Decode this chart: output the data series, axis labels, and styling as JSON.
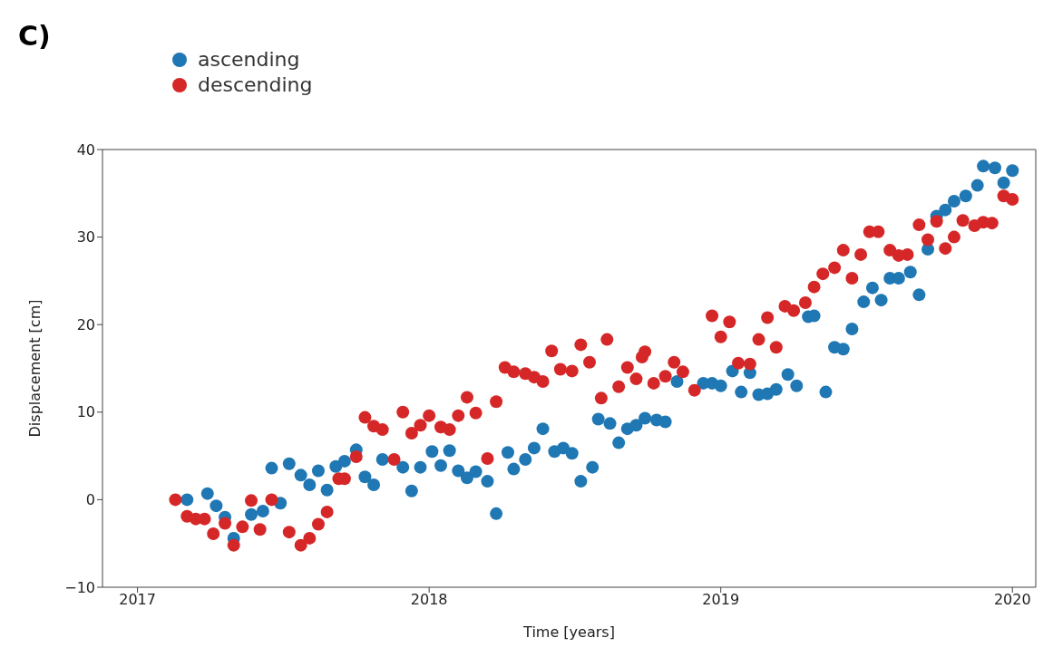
{
  "chart_data": {
    "type": "scatter",
    "title": "C)",
    "xlabel": "Time [years]",
    "ylabel": "Displacement [cm]",
    "xlim": [
      2016.88,
      2020.08
    ],
    "ylim": [
      -10,
      40
    ],
    "xticks": [
      2017,
      2018,
      2019,
      2020
    ],
    "yticks": [
      {
        "value": -10,
        "label": "−10"
      },
      0,
      10,
      20,
      30,
      40
    ],
    "grid": false,
    "legend": "top left",
    "marker": "circle",
    "series": [
      {
        "name": "ascending",
        "color": "#1f77b4",
        "x": [
          2017.17,
          2017.24,
          2017.27,
          2017.3,
          2017.33,
          2017.39,
          2017.43,
          2017.46,
          2017.49,
          2017.52,
          2017.56,
          2017.59,
          2017.62,
          2017.65,
          2017.68,
          2017.71,
          2017.75,
          2017.78,
          2017.81,
          2017.84,
          2017.91,
          2017.94,
          2017.97,
          2018.01,
          2018.04,
          2018.07,
          2018.1,
          2018.13,
          2018.16,
          2018.2,
          2018.23,
          2018.27,
          2018.29,
          2018.33,
          2018.36,
          2018.39,
          2018.43,
          2018.46,
          2018.49,
          2018.52,
          2018.56,
          2018.58,
          2018.62,
          2018.65,
          2018.68,
          2018.71,
          2018.74,
          2018.78,
          2018.81,
          2018.85,
          2018.94,
          2018.97,
          2019.0,
          2019.04,
          2019.07,
          2019.1,
          2019.13,
          2019.16,
          2019.19,
          2019.23,
          2019.26,
          2019.3,
          2019.32,
          2019.36,
          2019.39,
          2019.42,
          2019.45,
          2019.49,
          2019.52,
          2019.55,
          2019.58,
          2019.61,
          2019.65,
          2019.68,
          2019.71,
          2019.74,
          2019.77,
          2019.8,
          2019.84,
          2019.88,
          2019.9,
          2019.94,
          2019.97,
          2020.0
        ],
        "values": [
          0,
          0.7,
          -0.7,
          -2.0,
          -4.4,
          -1.7,
          -1.3,
          3.6,
          -0.4,
          4.1,
          2.8,
          1.7,
          3.3,
          1.1,
          3.8,
          4.4,
          5.7,
          2.6,
          1.7,
          4.6,
          3.7,
          1.0,
          3.7,
          5.5,
          3.9,
          5.6,
          3.3,
          2.5,
          3.2,
          2.1,
          -1.6,
          5.4,
          3.5,
          4.6,
          5.9,
          8.1,
          5.5,
          5.9,
          5.3,
          2.1,
          3.7,
          9.2,
          8.7,
          6.5,
          8.1,
          8.5,
          9.3,
          9.1,
          8.9,
          13.5,
          13.3,
          13.3,
          13.0,
          14.7,
          12.3,
          14.5,
          12.0,
          12.1,
          12.6,
          14.3,
          13.0,
          20.9,
          21.0,
          12.3,
          17.4,
          17.2,
          19.5,
          22.6,
          24.2,
          22.8,
          25.3,
          25.3,
          26.0,
          23.4,
          28.6,
          32.4,
          33.1,
          34.1,
          34.7,
          35.9,
          38.1,
          37.9,
          36.2,
          37.6
        ]
      },
      {
        "name": "descending",
        "color": "#d62728",
        "x": [
          2017.13,
          2017.17,
          2017.2,
          2017.23,
          2017.26,
          2017.3,
          2017.33,
          2017.36,
          2017.39,
          2017.42,
          2017.46,
          2017.52,
          2017.56,
          2017.59,
          2017.62,
          2017.65,
          2017.69,
          2017.71,
          2017.75,
          2017.78,
          2017.81,
          2017.84,
          2017.88,
          2017.91,
          2017.94,
          2017.97,
          2018.0,
          2018.04,
          2018.07,
          2018.1,
          2018.13,
          2018.16,
          2018.2,
          2018.23,
          2018.26,
          2018.29,
          2018.33,
          2018.36,
          2018.39,
          2018.42,
          2018.45,
          2018.49,
          2018.52,
          2018.55,
          2018.59,
          2018.61,
          2018.65,
          2018.68,
          2018.71,
          2018.73,
          2018.74,
          2018.77,
          2018.81,
          2018.84,
          2018.87,
          2018.91,
          2018.97,
          2019.0,
          2019.03,
          2019.06,
          2019.1,
          2019.13,
          2019.16,
          2019.19,
          2019.22,
          2019.25,
          2019.29,
          2019.32,
          2019.35,
          2019.39,
          2019.42,
          2019.45,
          2019.48,
          2019.51,
          2019.54,
          2019.58,
          2019.61,
          2019.64,
          2019.68,
          2019.71,
          2019.74,
          2019.77,
          2019.8,
          2019.83,
          2019.87,
          2019.9,
          2019.93,
          2019.97,
          2020.0
        ],
        "values": [
          0,
          -1.9,
          -2.2,
          -2.2,
          -3.9,
          -2.7,
          -5.2,
          -3.1,
          -0.1,
          -3.4,
          0,
          -3.7,
          -5.2,
          -4.4,
          -2.8,
          -1.4,
          2.4,
          2.4,
          4.9,
          9.4,
          8.4,
          8.0,
          4.6,
          10.0,
          7.6,
          8.5,
          9.6,
          8.3,
          8.0,
          9.6,
          11.7,
          9.9,
          4.7,
          11.2,
          15.1,
          14.6,
          14.4,
          14.0,
          13.5,
          17.0,
          14.9,
          14.7,
          17.7,
          15.7,
          11.6,
          18.3,
          12.9,
          15.1,
          13.8,
          16.3,
          16.9,
          13.3,
          14.1,
          15.7,
          14.6,
          12.5,
          21.0,
          18.6,
          20.3,
          15.6,
          15.5,
          18.3,
          20.8,
          17.4,
          22.1,
          21.6,
          22.5,
          24.3,
          25.8,
          26.5,
          28.5,
          25.3,
          28.0,
          30.6,
          30.6,
          28.5,
          27.9,
          28.0,
          31.4,
          29.7,
          31.8,
          28.7,
          30.0,
          31.9,
          31.3,
          31.7,
          31.6,
          34.7,
          34.3
        ]
      }
    ]
  }
}
